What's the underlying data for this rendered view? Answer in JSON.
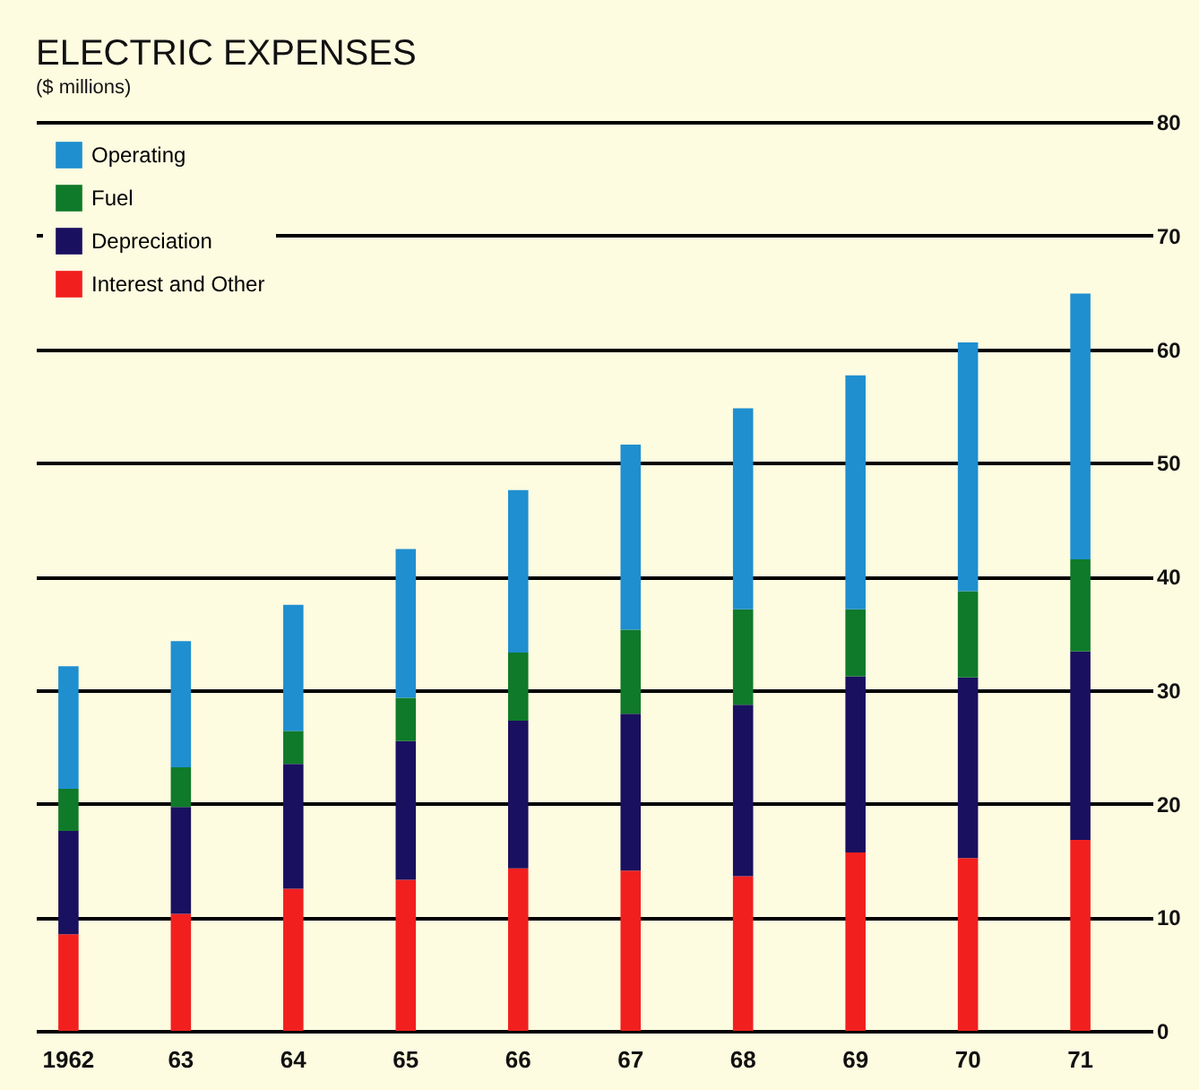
{
  "chart_data": {
    "type": "bar",
    "title": "ELECTRIC EXPENSES",
    "subtitle": "($ millions)",
    "categories": [
      "1962",
      "63",
      "64",
      "65",
      "66",
      "67",
      "68",
      "69",
      "70",
      "71"
    ],
    "stacked": true,
    "series": [
      {
        "name": "Interest and Other",
        "color": "#f21f1f",
        "values": [
          8.5,
          10.3,
          12.5,
          13.3,
          14.3,
          14.1,
          13.6,
          15.7,
          15.2,
          16.8
        ]
      },
      {
        "name": "Depreciation",
        "color": "#1a1060",
        "values": [
          9.1,
          9.4,
          11.0,
          12.2,
          13.0,
          13.8,
          15.1,
          15.5,
          15.9,
          16.6
        ]
      },
      {
        "name": "Fuel",
        "color": "#0f7a2a",
        "values": [
          3.7,
          3.5,
          2.9,
          3.8,
          6.0,
          7.4,
          8.4,
          5.9,
          7.6,
          8.1
        ]
      },
      {
        "name": "Operating",
        "color": "#1f8fd0",
        "values": [
          10.8,
          11.1,
          11.1,
          13.1,
          14.3,
          16.3,
          17.7,
          20.6,
          21.9,
          23.4
        ]
      }
    ],
    "ylim": [
      0,
      80
    ],
    "yticks": [
      0,
      10,
      20,
      30,
      40,
      50,
      60,
      70,
      80
    ],
    "grid": "y",
    "legend": "top left"
  }
}
